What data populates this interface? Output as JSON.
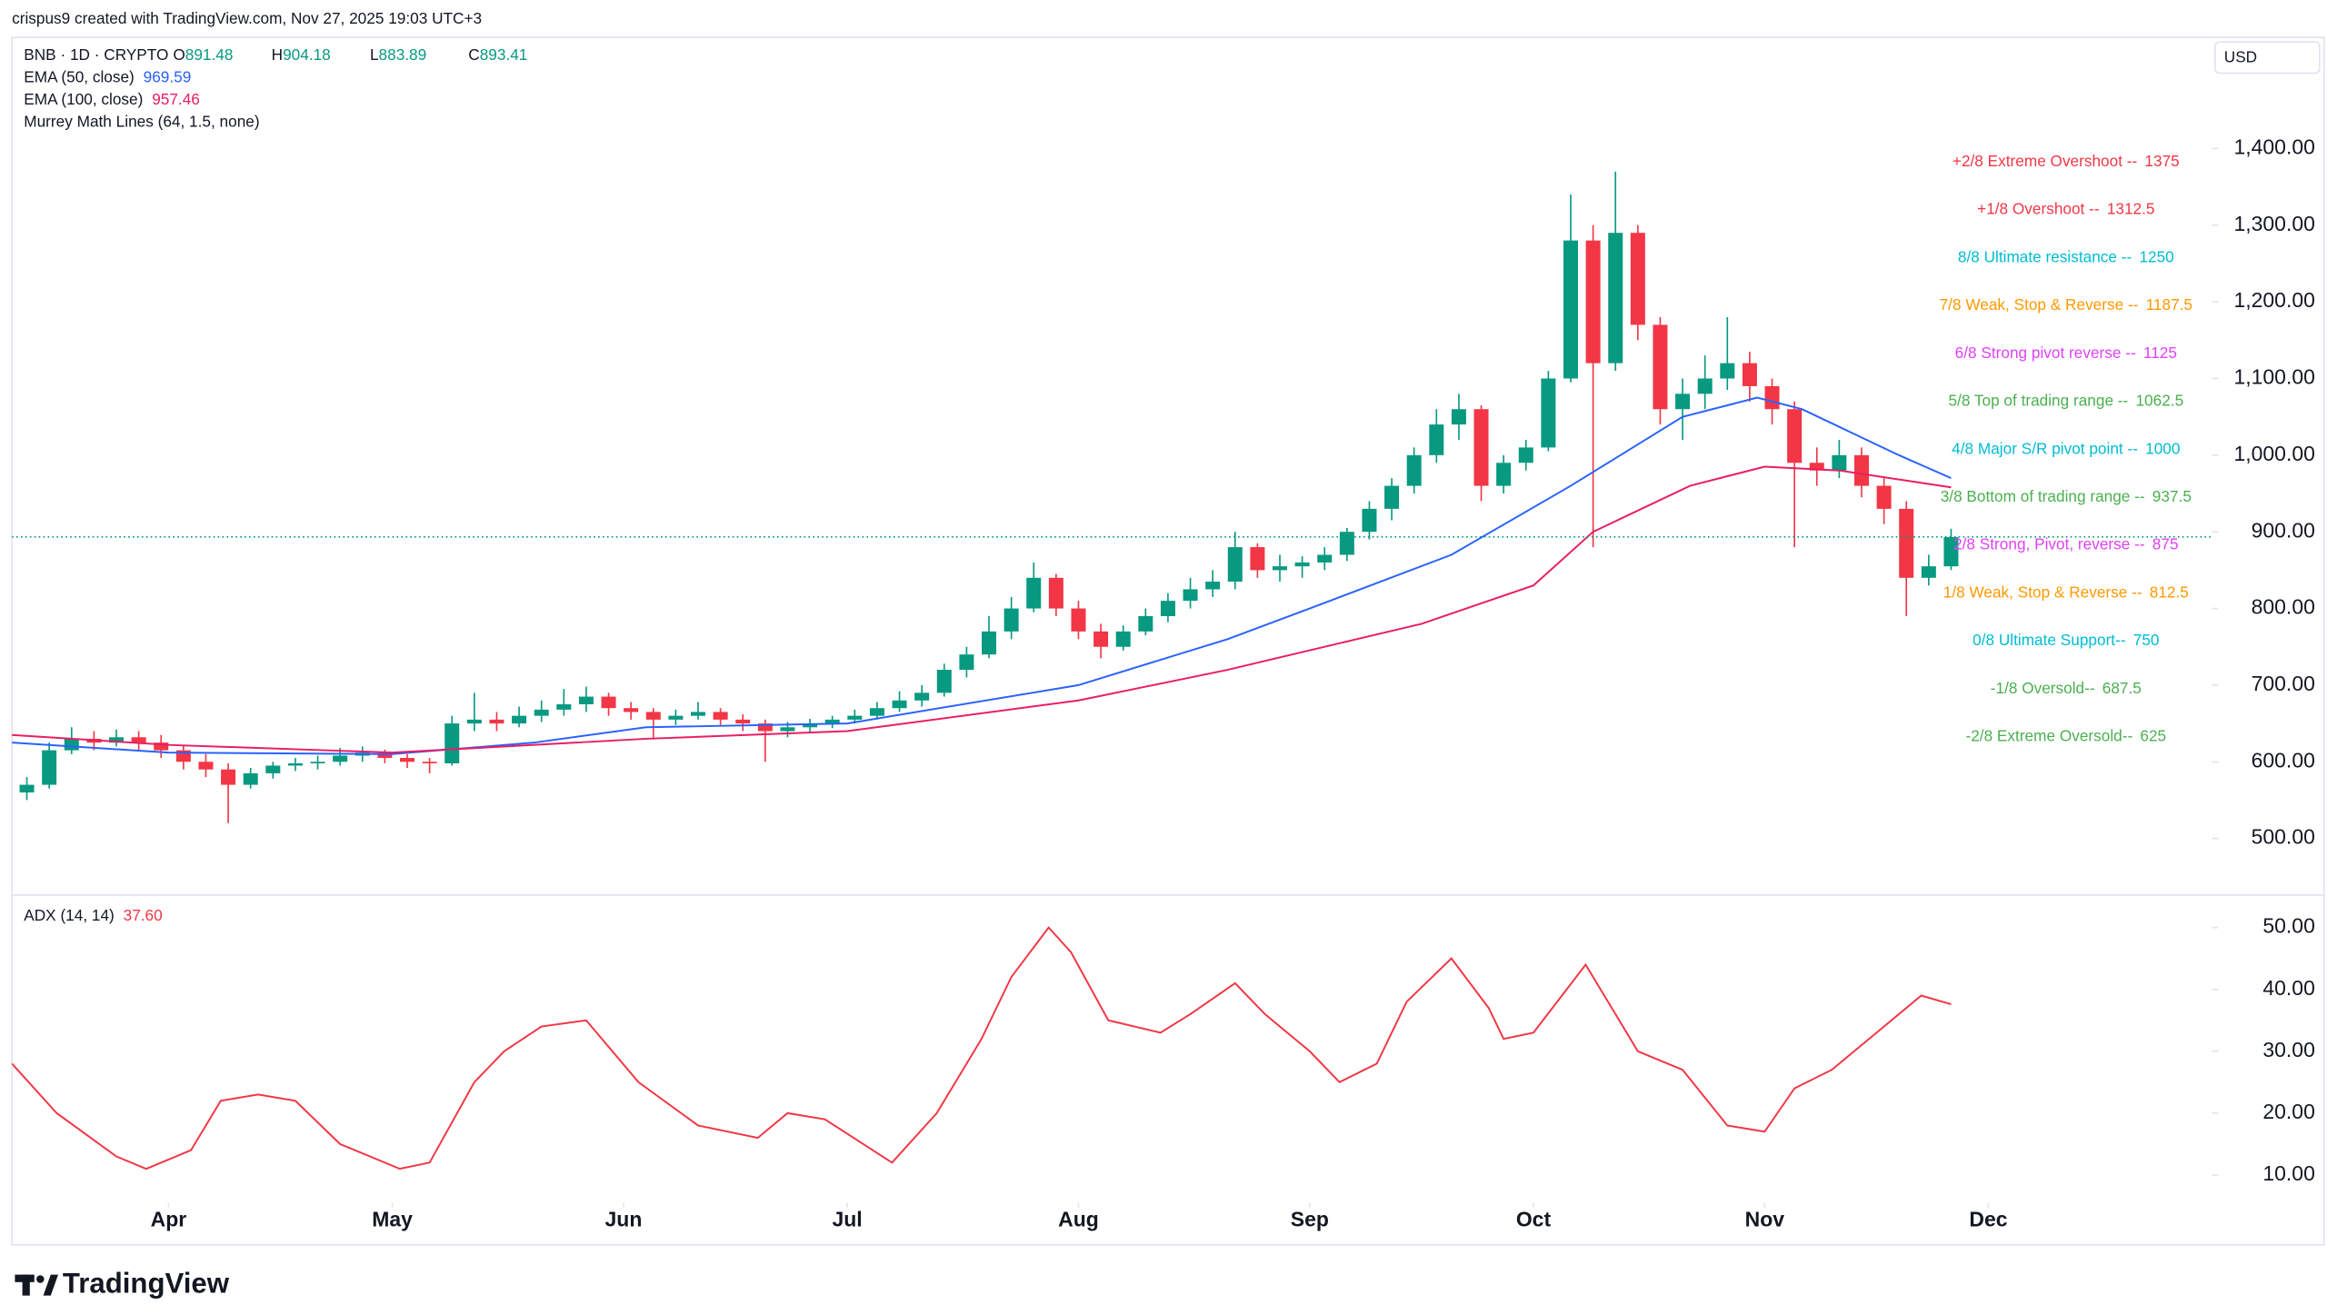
{
  "header": "crispus9 created with TradingView.com, Nov 27, 2025 19:03 UTC+3",
  "currency": "USD",
  "brand": "TradingView",
  "chart_data": [
    {
      "type": "candlestick",
      "symbol": "BNB · 1D · CRYPTO",
      "ohlc_labels": [
        "O",
        "H",
        "L",
        "C"
      ],
      "ohlc_values": [
        891.48,
        904.18,
        883.89,
        893.41
      ],
      "up_color": "#089981",
      "down_color": "#f23645",
      "x": [
        12,
        15,
        18,
        21,
        24,
        27,
        30,
        33,
        36,
        39,
        42,
        45,
        48,
        51,
        54,
        57,
        60,
        63,
        66,
        69,
        72,
        75,
        78,
        81,
        84,
        87,
        90,
        93,
        96,
        99,
        102,
        105,
        108,
        111,
        114,
        117,
        120,
        123,
        126,
        129,
        132,
        135,
        138,
        141,
        144,
        147,
        150,
        153,
        156,
        159,
        162,
        165,
        168,
        171,
        174,
        177,
        180,
        183,
        186,
        189,
        192,
        195,
        198,
        201,
        204,
        207,
        210,
        213,
        216,
        219,
        222,
        225,
        228,
        231,
        234,
        237,
        240,
        243,
        246,
        249,
        252,
        255,
        258,
        261,
        264,
        267,
        270
      ],
      "open": [
        560,
        570,
        615,
        630,
        625,
        632,
        625,
        615,
        600,
        590,
        570,
        585,
        595,
        598,
        600,
        608,
        612,
        605,
        600,
        598,
        650,
        655,
        650,
        660,
        668,
        675,
        685,
        670,
        665,
        655,
        660,
        665,
        655,
        650,
        640,
        645,
        650,
        655,
        660,
        670,
        680,
        690,
        720,
        740,
        770,
        800,
        840,
        800,
        770,
        750,
        770,
        790,
        810,
        825,
        835,
        880,
        850,
        855,
        860,
        870,
        900,
        930,
        960,
        1000,
        1040,
        1060,
        960,
        990,
        1010,
        1100,
        1280,
        1120,
        1290,
        1170,
        1060,
        1080,
        1100,
        1120,
        1090,
        1060,
        990,
        980,
        1000,
        960,
        930,
        840,
        855
      ],
      "high": [
        580,
        625,
        645,
        640,
        642,
        640,
        635,
        622,
        610,
        598,
        592,
        600,
        605,
        608,
        618,
        620,
        616,
        610,
        605,
        660,
        690,
        665,
        672,
        680,
        695,
        698,
        690,
        678,
        670,
        668,
        678,
        670,
        662,
        655,
        652,
        656,
        660,
        668,
        678,
        692,
        700,
        728,
        750,
        790,
        815,
        860,
        845,
        810,
        780,
        778,
        800,
        820,
        840,
        850,
        900,
        885,
        870,
        868,
        880,
        905,
        940,
        970,
        1010,
        1060,
        1080,
        1065,
        1000,
        1020,
        1110,
        1340,
        1300,
        1370,
        1300,
        1180,
        1100,
        1130,
        1180,
        1135,
        1100,
        1070,
        1010,
        1020,
        1010,
        970,
        940,
        870,
        904
      ],
      "low": [
        550,
        565,
        610,
        615,
        620,
        615,
        605,
        590,
        580,
        520,
        565,
        578,
        588,
        590,
        595,
        600,
        598,
        592,
        585,
        595,
        640,
        640,
        645,
        652,
        660,
        665,
        660,
        655,
        630,
        648,
        655,
        648,
        640,
        600,
        632,
        638,
        644,
        650,
        655,
        665,
        672,
        685,
        710,
        735,
        760,
        795,
        790,
        760,
        735,
        745,
        765,
        782,
        800,
        815,
        825,
        840,
        835,
        840,
        850,
        862,
        890,
        915,
        950,
        990,
        1020,
        940,
        950,
        980,
        1005,
        1095,
        880,
        1110,
        1150,
        1040,
        1020,
        1060,
        1085,
        1070,
        1040,
        880,
        960,
        970,
        945,
        910,
        790,
        830,
        850
      ],
      "close": [
        570,
        615,
        630,
        625,
        632,
        625,
        615,
        600,
        590,
        570,
        585,
        595,
        598,
        600,
        608,
        612,
        605,
        600,
        598,
        650,
        655,
        650,
        660,
        668,
        675,
        685,
        670,
        665,
        655,
        660,
        665,
        655,
        650,
        640,
        645,
        650,
        655,
        660,
        670,
        680,
        690,
        720,
        740,
        770,
        800,
        840,
        800,
        770,
        750,
        770,
        790,
        810,
        825,
        835,
        880,
        850,
        855,
        860,
        870,
        900,
        930,
        960,
        1000,
        1040,
        1060,
        960,
        990,
        1010,
        1100,
        1280,
        1120,
        1290,
        1170,
        1060,
        1080,
        1100,
        1120,
        1090,
        1060,
        990,
        980,
        1000,
        960,
        930,
        840,
        855,
        893
      ],
      "series": [
        {
          "name": "EMA (50, close)",
          "color": "#2962ff",
          "last_value": 969.59,
          "x": [
            10,
            31,
            61,
            80,
            95,
            122,
            153,
            173,
            184,
            203,
            219,
            234,
            244,
            250,
            263,
            270
          ],
          "values": [
            625,
            612,
            610,
            625,
            645,
            650,
            700,
            760,
            800,
            870,
            960,
            1050,
            1075,
            1060,
            1000,
            970
          ]
        },
        {
          "name": "EMA (100, close)",
          "color": "#e91e63",
          "last_value": 957.46,
          "x": [
            10,
            31,
            61,
            95,
            122,
            153,
            173,
            199,
            214,
            222,
            235,
            245,
            255,
            270
          ],
          "values": [
            635,
            622,
            612,
            630,
            640,
            680,
            720,
            780,
            830,
            900,
            960,
            985,
            980,
            958
          ]
        }
      ],
      "indicator_name": "Murrey Math Lines (64, 1.5, none)",
      "murrey": [
        {
          "label": "+2/8 Extreme Overshoot --",
          "value": 1375,
          "color": "#f23645"
        },
        {
          "label": "+1/8 Overshoot --",
          "value": 1312.5,
          "color": "#f23645"
        },
        {
          "label": "8/8 Ultimate resistance --",
          "value": 1250,
          "color": "#00bcd4"
        },
        {
          "label": "7/8 Weak, Stop & Reverse --",
          "value": 1187.5,
          "color": "#ff9800"
        },
        {
          "label": "6/8 Strong pivot reverse --",
          "value": 1125,
          "color": "#e040fb"
        },
        {
          "label": "5/8 Top of trading range --",
          "value": 1062.5,
          "color": "#4caf50"
        },
        {
          "label": "4/8 Major S/R pivot point --",
          "value": 1000,
          "color": "#00bcd4"
        },
        {
          "label": "3/8 Bottom of trading range --",
          "value": 937.5,
          "color": "#4caf50"
        },
        {
          "label": "2/8 Strong, Pivot, reverse --",
          "value": 875,
          "color": "#e040fb"
        },
        {
          "label": "1/8 Weak, Stop & Reverse --",
          "value": 812.5,
          "color": "#ff9800"
        },
        {
          "label": "0/8 Ultimate Support--",
          "value": 750,
          "color": "#00bcd4"
        },
        {
          "label": "-1/8 Oversold--",
          "value": 687.5,
          "color": "#4caf50"
        },
        {
          "label": "-2/8 Extreme Oversold--",
          "value": 625,
          "color": "#4caf50"
        }
      ],
      "xlim": [
        10,
        305
      ],
      "ylim": [
        430,
        1545
      ],
      "yticks": [
        {
          "value": 500,
          "label": "500.00"
        },
        {
          "value": 600,
          "label": "600.00"
        },
        {
          "value": 700,
          "label": "700.00"
        },
        {
          "value": 800,
          "label": "800.00"
        },
        {
          "value": 900,
          "label": "900.00"
        },
        {
          "value": 1000,
          "label": "1,000.00"
        },
        {
          "value": 1100,
          "label": "1,100.00"
        },
        {
          "value": 1200,
          "label": "1,200.00"
        },
        {
          "value": 1300,
          "label": "1,300.00"
        },
        {
          "value": 1400,
          "label": "1,400.00"
        }
      ],
      "grid": false,
      "last_price_line": true
    },
    {
      "type": "line",
      "series": [
        {
          "name": "ADX (14, 14)",
          "color": "#f23645",
          "last_value": {
            "value": 37.6,
            "label": "37.60"
          },
          "x": [
            10,
            16,
            24,
            28,
            34,
            38,
            43,
            48,
            54,
            62,
            66,
            72,
            76,
            81,
            87,
            94,
            102,
            110,
            114,
            119,
            128,
            134,
            140,
            144,
            149,
            152,
            157,
            164,
            168,
            174,
            178,
            184,
            188,
            193,
            197,
            203,
            208,
            210,
            214,
            221,
            228,
            234,
            240,
            245,
            249,
            254,
            260,
            266,
            270
          ],
          "values": [
            28,
            20,
            13,
            11,
            14,
            22,
            23,
            22,
            15,
            11,
            12,
            25,
            30,
            34,
            35,
            25,
            18,
            16,
            20,
            19,
            12,
            20,
            32,
            42,
            50,
            46,
            35,
            33,
            36,
            41,
            36,
            30,
            25,
            28,
            38,
            45,
            37,
            32,
            33,
            44,
            30,
            27,
            18,
            17,
            24,
            27,
            33,
            39,
            37.6
          ]
        }
      ],
      "xlim": [
        10,
        305
      ],
      "ylim": [
        5,
        55
      ],
      "yticks": [
        {
          "value": 10,
          "label": "10.00"
        },
        {
          "value": 20,
          "label": "20.00"
        },
        {
          "value": 30,
          "label": "30.00"
        },
        {
          "value": 40,
          "label": "40.00"
        },
        {
          "value": 50,
          "label": "50.00"
        }
      ],
      "xticks": [
        {
          "value": 31,
          "label": "Apr"
        },
        {
          "value": 61,
          "label": "May"
        },
        {
          "value": 92,
          "label": "Jun"
        },
        {
          "value": 122,
          "label": "Jul"
        },
        {
          "value": 153,
          "label": "Aug"
        },
        {
          "value": 184,
          "label": "Sep"
        },
        {
          "value": 214,
          "label": "Oct"
        },
        {
          "value": 245,
          "label": "Nov"
        },
        {
          "value": 275,
          "label": "Dec"
        }
      ],
      "grid": false
    }
  ]
}
